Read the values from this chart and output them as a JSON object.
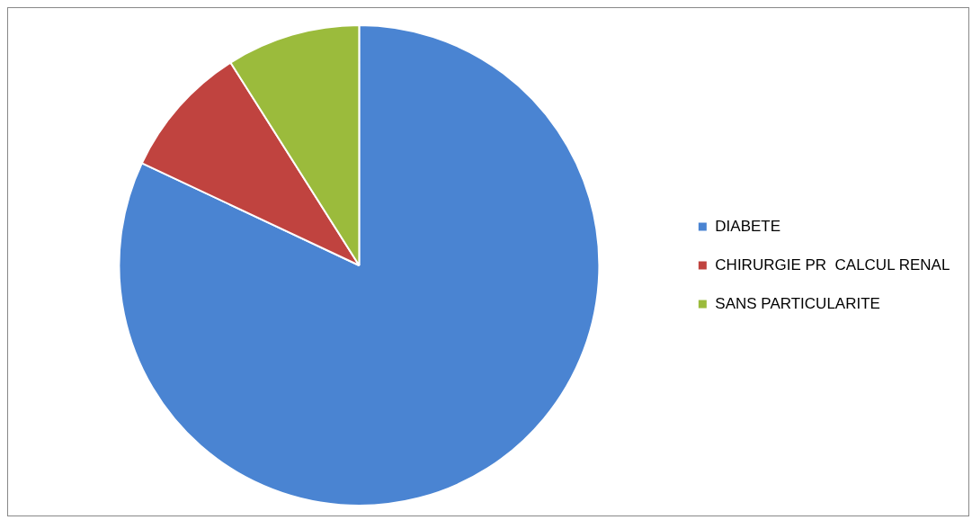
{
  "chart_data": {
    "type": "pie",
    "categories": [
      "DIABETE",
      "CHIRURGIE PR  CALCUL RENAL",
      "SANS PARTICULARITE"
    ],
    "values": [
      82,
      9,
      9
    ],
    "colors": [
      "#4a84d2",
      "#c0433f",
      "#9bbb3c"
    ],
    "legend": "right"
  }
}
